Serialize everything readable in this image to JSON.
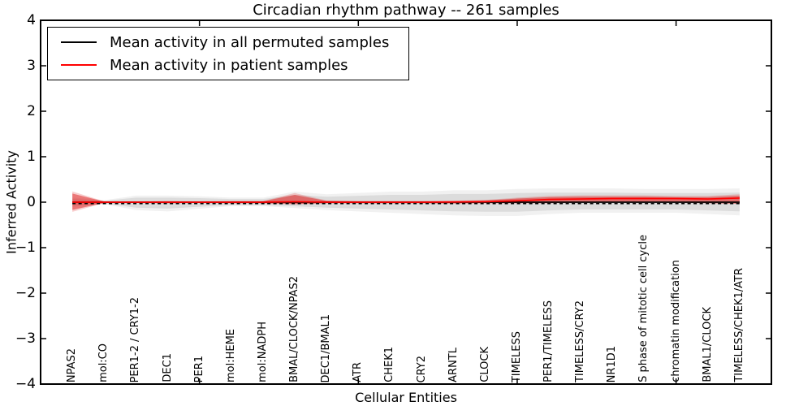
{
  "title": "Circadian rhythm pathway -- 261 samples",
  "legend": {
    "items": [
      {
        "label": "Mean activity in all permuted samples",
        "color": "#000000"
      },
      {
        "label": "Mean activity in patient samples",
        "color": "#ff0000"
      }
    ]
  },
  "chart_data": {
    "type": "line",
    "title": "Circadian rhythm pathway -- 261 samples",
    "xlabel": "Cellular Entities",
    "ylabel": "Inferred Activity",
    "ylim": [
      -4,
      4
    ],
    "yticks": [
      4,
      3,
      2,
      1,
      0,
      -1,
      -2,
      -3,
      -4
    ],
    "yticklabels": [
      "4",
      "3",
      "2",
      "1",
      "0",
      "−1",
      "−2",
      "−3",
      "−4"
    ],
    "xtick_positions": [
      5,
      10,
      15,
      20
    ],
    "grid": false,
    "legend_position": "upper left",
    "categories": [
      "NPAS2",
      "mol:CO",
      "PER1-2 / CRY1-2",
      "DEC1",
      "PER1",
      "mol:HEME",
      "mol:NADPH",
      "BMAL/CLOCK/NPAS2",
      "DEC1/BMAL1",
      "ATR",
      "CHEK1",
      "CRY2",
      "ARNTL",
      "CLOCK",
      "TIMELESS",
      "PER1/TIMELESS",
      "TIMELESS/CRY2",
      "NR1D1",
      "S phase of mitotic cell cycle",
      "chromatin modification",
      "BMAL1/CLOCK",
      "TIMELESS/CHEK1/ATR"
    ],
    "series": [
      {
        "name": "Mean activity in all permuted samples",
        "color": "#000000",
        "style": "solid",
        "values": [
          0,
          0,
          0,
          0,
          0,
          0,
          0,
          0,
          0,
          0,
          0,
          0,
          0,
          0,
          0,
          0,
          0,
          0,
          0,
          0,
          0,
          0
        ]
      },
      {
        "name": "Mean activity in patient samples",
        "color": "#ff0000",
        "style": "solid",
        "values": [
          0,
          0,
          0,
          0,
          0,
          0,
          0,
          0.01,
          0,
          0,
          0,
          0,
          0.005,
          0.01,
          0.03,
          0.06,
          0.07,
          0.08,
          0.08,
          0.08,
          0.07,
          0.09
        ]
      }
    ],
    "dashed_overlay": {
      "name": "permuted-median",
      "color": "#000000",
      "value": -0.03
    },
    "bands": [
      {
        "name": "permuted-sample-range",
        "color": "#999999",
        "inner_opacity": 0.24,
        "outer_opacity": 0.14,
        "outer_scale": 1.45,
        "upper": [
          0.07,
          0.03,
          0.1,
          0.1,
          0.09,
          0.07,
          0.07,
          0.16,
          0.12,
          0.14,
          0.16,
          0.16,
          0.18,
          0.18,
          0.2,
          0.21,
          0.21,
          0.21,
          0.2,
          0.2,
          0.2,
          0.21
        ],
        "lower": [
          -0.07,
          -0.03,
          -0.12,
          -0.14,
          -0.1,
          -0.06,
          -0.06,
          -0.09,
          -0.12,
          -0.14,
          -0.16,
          -0.18,
          -0.2,
          -0.21,
          -0.21,
          -0.18,
          -0.16,
          -0.16,
          -0.16,
          -0.16,
          -0.18,
          -0.2
        ]
      },
      {
        "name": "patient-sample-range",
        "color": "#dd2020",
        "inner_opacity": 0.5,
        "outer_opacity": 0.22,
        "outer_scale": 1.25,
        "upper": [
          0.19,
          0.015,
          0.015,
          0.02,
          0.015,
          0.02,
          0.02,
          0.16,
          0.03,
          0.02,
          0.02,
          0.02,
          0.025,
          0.04,
          0.08,
          0.11,
          0.12,
          0.12,
          0.12,
          0.11,
          0.11,
          0.14
        ],
        "lower": [
          -0.17,
          -0.015,
          -0.015,
          -0.02,
          -0.015,
          -0.02,
          -0.02,
          -0.04,
          -0.02,
          -0.02,
          -0.02,
          -0.02,
          -0.025,
          -0.02,
          -0.02,
          -0.02,
          -0.01,
          -0.01,
          -0.01,
          -0.01,
          -0.02,
          -0.03
        ]
      }
    ]
  }
}
